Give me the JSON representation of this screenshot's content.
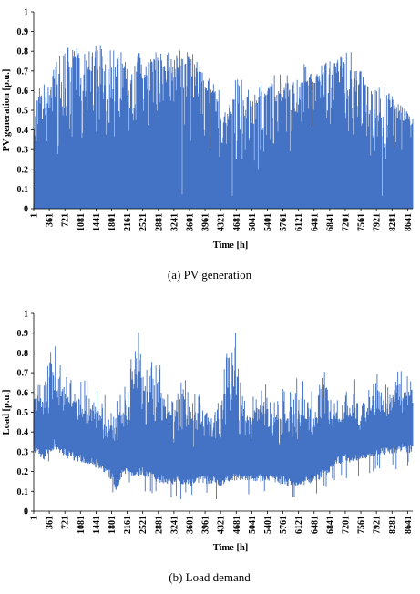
{
  "chart_data": [
    {
      "type": "area",
      "caption": "(a)  PV  generation",
      "xlabel": "Time [h]",
      "ylabel": "PV generation [p.u.]",
      "ylim": [
        0,
        1
      ],
      "yticks": [
        "0",
        "0.1",
        "0.2",
        "0.3",
        "0.4",
        "0.5",
        "0.6",
        "0.7",
        "0.8",
        "0.9",
        "1"
      ],
      "xticks": [
        "1",
        "361",
        "721",
        "1081",
        "1441",
        "1801",
        "2161",
        "2521",
        "2881",
        "3241",
        "3601",
        "3961",
        "4321",
        "4681",
        "5041",
        "5401",
        "5761",
        "6121",
        "6481",
        "6841",
        "7201",
        "7561",
        "7921",
        "8281",
        "8641"
      ],
      "xlim": [
        1,
        8760
      ],
      "grid": false,
      "color": "#4472C4",
      "series": [
        {
          "x": [
            1,
            121,
            241,
            361,
            481,
            601,
            721,
            841,
            961,
            1081,
            1201,
            1321,
            1441,
            1561,
            1681,
            1801,
            1921,
            2041,
            2161,
            2281,
            2401,
            2521,
            2641,
            2761,
            2881,
            3001,
            3121,
            3241,
            3361,
            3481,
            3601,
            3721,
            3841,
            3961,
            4081,
            4201,
            4321,
            4441,
            4561,
            4681,
            4801,
            4921,
            5041,
            5161,
            5281,
            5401,
            5521,
            5641,
            5761,
            5881,
            6001,
            6121,
            6241,
            6361,
            6481,
            6601,
            6721,
            6841,
            6961,
            7081,
            7201,
            7321,
            7441,
            7561,
            7681,
            7801,
            7921,
            8041,
            8161,
            8281,
            8401,
            8521,
            8641,
            8760
          ],
          "upper": [
            0.6,
            0.62,
            0.66,
            0.68,
            0.74,
            0.78,
            0.84,
            0.82,
            0.85,
            0.85,
            0.84,
            0.8,
            0.84,
            0.83,
            0.85,
            0.84,
            0.84,
            0.83,
            0.75,
            0.78,
            0.8,
            0.79,
            0.82,
            0.8,
            0.82,
            0.82,
            0.8,
            0.82,
            0.8,
            0.82,
            0.83,
            0.76,
            0.74,
            0.7,
            0.66,
            0.62,
            0.6,
            0.55,
            0.58,
            0.68,
            0.66,
            0.62,
            0.58,
            0.62,
            0.66,
            0.62,
            0.72,
            0.7,
            0.66,
            0.7,
            0.68,
            0.7,
            0.74,
            0.72,
            0.7,
            0.72,
            0.74,
            0.76,
            0.8,
            0.78,
            0.8,
            0.8,
            0.75,
            0.72,
            0.68,
            0.66,
            0.6,
            0.64,
            0.62,
            0.58,
            0.54,
            0.52,
            0.5,
            0.48
          ],
          "base": [
            0.14,
            0.16,
            0.18,
            0.2,
            0.24,
            0.28,
            0.3,
            0.3,
            0.32,
            0.33,
            0.34,
            0.34,
            0.35,
            0.36,
            0.36,
            0.36,
            0.36,
            0.36,
            0.34,
            0.34,
            0.35,
            0.35,
            0.36,
            0.36,
            0.36,
            0.36,
            0.36,
            0.36,
            0.35,
            0.35,
            0.34,
            0.32,
            0.3,
            0.28,
            0.26,
            0.24,
            0.22,
            0.2,
            0.2,
            0.22,
            0.22,
            0.2,
            0.18,
            0.18,
            0.2,
            0.2,
            0.22,
            0.24,
            0.24,
            0.25,
            0.26,
            0.28,
            0.3,
            0.3,
            0.3,
            0.32,
            0.32,
            0.33,
            0.34,
            0.34,
            0.35,
            0.34,
            0.32,
            0.3,
            0.28,
            0.26,
            0.24,
            0.24,
            0.22,
            0.2,
            0.18,
            0.16,
            0.15,
            0.14
          ]
        }
      ]
    },
    {
      "type": "area",
      "caption": "(b)  Load  demand",
      "xlabel": "Time [h]",
      "ylabel": "Load [p.u.]",
      "ylim": [
        0,
        1
      ],
      "yticks": [
        "0",
        "0.1",
        "0.2",
        "0.3",
        "0.4",
        "0.5",
        "0.6",
        "0.7",
        "0.8",
        "0.9",
        "1"
      ],
      "xticks": [
        "1",
        "361",
        "721",
        "1081",
        "1441",
        "1801",
        "2161",
        "2521",
        "2881",
        "3241",
        "3601",
        "3961",
        "4321",
        "4681",
        "5041",
        "5401",
        "5761",
        "6121",
        "6481",
        "6841",
        "7201",
        "7561",
        "7921",
        "8281",
        "8641"
      ],
      "xlim": [
        1,
        8760
      ],
      "grid": false,
      "color": "#4472C4",
      "series": [
        {
          "x": [
            1,
            121,
            241,
            361,
            481,
            601,
            721,
            841,
            961,
            1081,
            1201,
            1321,
            1441,
            1561,
            1681,
            1801,
            1921,
            2041,
            2161,
            2281,
            2401,
            2521,
            2641,
            2761,
            2881,
            3001,
            3121,
            3241,
            3361,
            3481,
            3601,
            3721,
            3841,
            3961,
            4081,
            4201,
            4321,
            4441,
            4561,
            4681,
            4801,
            4921,
            5041,
            5161,
            5281,
            5401,
            5521,
            5641,
            5761,
            5881,
            6001,
            6121,
            6241,
            6361,
            6481,
            6601,
            6721,
            6841,
            6961,
            7081,
            7201,
            7321,
            7441,
            7561,
            7681,
            7801,
            7921,
            8041,
            8161,
            8281,
            8401,
            8521,
            8641,
            8760
          ],
          "upper": [
            0.68,
            0.66,
            0.7,
            0.78,
            0.9,
            0.75,
            0.72,
            0.7,
            0.64,
            0.66,
            0.68,
            0.64,
            0.62,
            0.6,
            0.6,
            0.58,
            0.56,
            0.64,
            0.7,
            0.8,
            0.95,
            0.75,
            0.78,
            0.8,
            0.78,
            0.72,
            0.7,
            0.68,
            0.7,
            0.74,
            0.66,
            0.6,
            0.62,
            0.6,
            0.58,
            0.6,
            0.64,
            0.8,
            0.86,
            1.0,
            0.6,
            0.58,
            0.58,
            0.62,
            0.66,
            0.64,
            0.66,
            0.64,
            0.66,
            0.64,
            0.66,
            0.68,
            0.7,
            0.62,
            0.6,
            0.72,
            0.84,
            0.62,
            0.56,
            0.58,
            0.6,
            0.66,
            0.68,
            0.58,
            0.6,
            0.64,
            0.7,
            0.68,
            0.66,
            0.66,
            0.72,
            0.74,
            0.7,
            0.66
          ],
          "lower": [
            0.32,
            0.3,
            0.28,
            0.32,
            0.34,
            0.32,
            0.3,
            0.28,
            0.28,
            0.27,
            0.26,
            0.25,
            0.24,
            0.23,
            0.21,
            0.18,
            0.12,
            0.2,
            0.22,
            0.2,
            0.2,
            0.2,
            0.19,
            0.18,
            0.17,
            0.16,
            0.16,
            0.16,
            0.16,
            0.16,
            0.15,
            0.15,
            0.16,
            0.16,
            0.16,
            0.16,
            0.15,
            0.16,
            0.17,
            0.18,
            0.18,
            0.18,
            0.18,
            0.17,
            0.17,
            0.18,
            0.17,
            0.16,
            0.16,
            0.15,
            0.15,
            0.15,
            0.15,
            0.16,
            0.17,
            0.18,
            0.2,
            0.22,
            0.24,
            0.26,
            0.27,
            0.27,
            0.28,
            0.28,
            0.29,
            0.3,
            0.3,
            0.3,
            0.31,
            0.31,
            0.32,
            0.32,
            0.32,
            0.32
          ]
        }
      ]
    }
  ]
}
